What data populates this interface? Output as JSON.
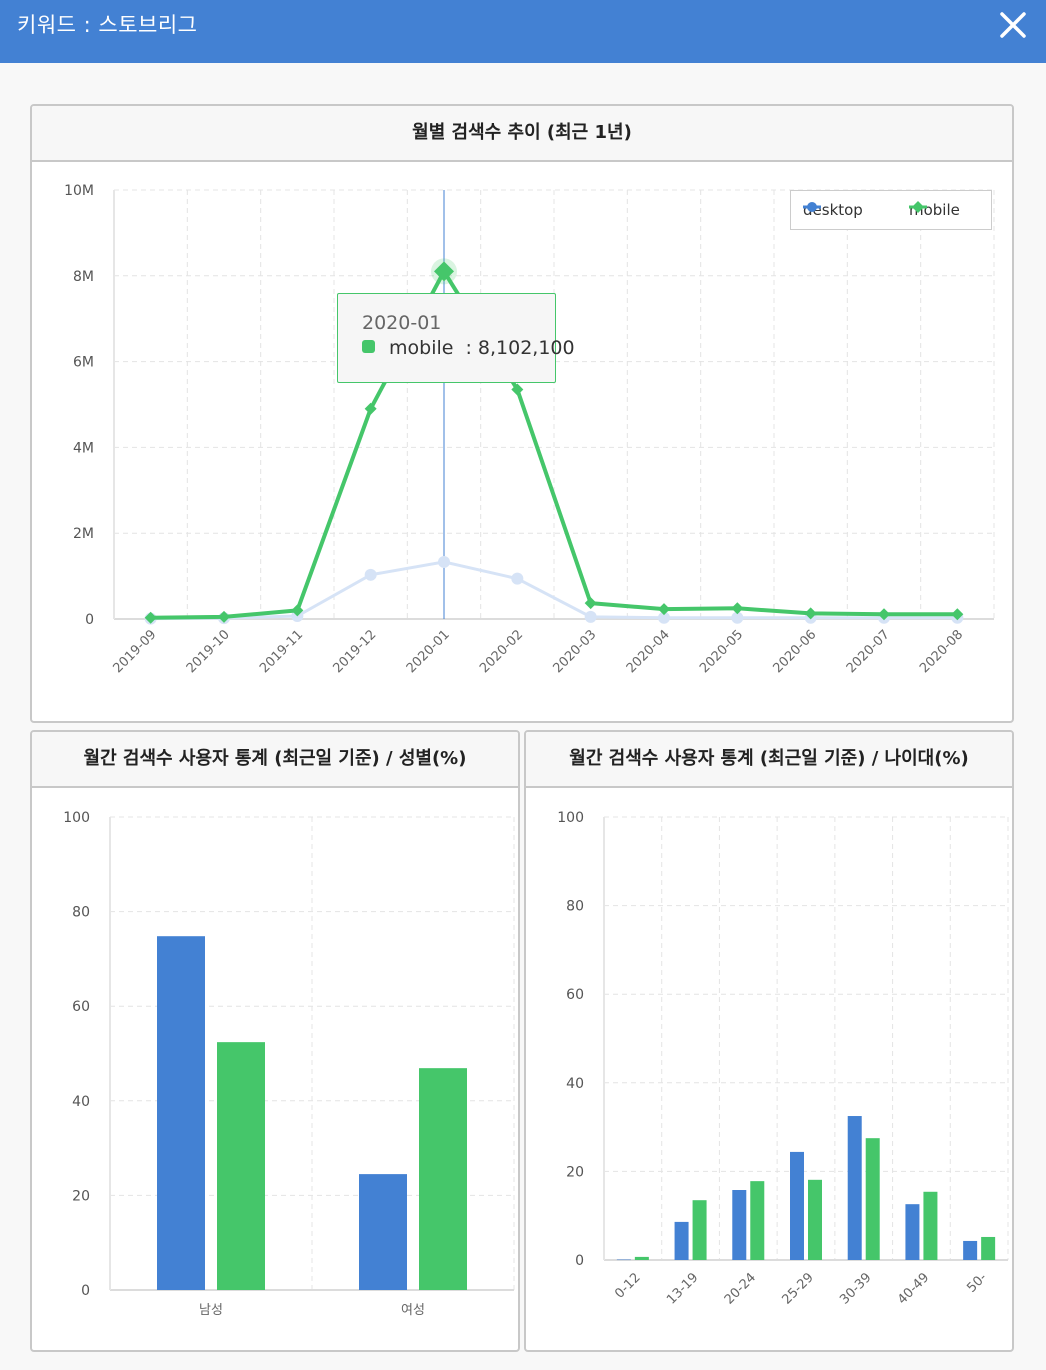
{
  "header": {
    "title": "키워드 : 스토브리그",
    "close_icon": "close-icon"
  },
  "colors": {
    "header_bg": "#4381d3",
    "desktop": "#4381d3",
    "mobile": "#45c66a"
  },
  "monthly_panel": {
    "title": "월별 검색수 추이 (최근 1년)",
    "legend": [
      {
        "label": "desktop",
        "icon": "circle-marker-icon"
      },
      {
        "label": "mobile",
        "icon": "diamond-marker-icon"
      }
    ],
    "tooltip": {
      "title": "2020-01",
      "series": "mobile",
      "separator": ":",
      "value": "8,102,100"
    }
  },
  "gender_panel": {
    "title": "월간 검색수 사용자 통계 (최근일 기준) / 성별(%)"
  },
  "age_panel": {
    "title": "월간 검색수 사용자 통계 (최근일 기준) / 나이대(%)"
  },
  "chart_data": [
    {
      "type": "line",
      "title": "월별 검색수 추이 (최근 1년)",
      "xlabel": "",
      "ylabel": "",
      "x": [
        "2019-09",
        "2019-10",
        "2019-11",
        "2019-12",
        "2020-01",
        "2020-02",
        "2020-03",
        "2020-04",
        "2020-05",
        "2020-06",
        "2020-07",
        "2020-08"
      ],
      "yticks": [
        "0",
        "2M",
        "4M",
        "6M",
        "8M",
        "10M"
      ],
      "ylim": [
        0,
        10000000
      ],
      "grid": true,
      "legend_position": "top-right",
      "highlighted_index": 4,
      "series": [
        {
          "name": "desktop",
          "color": "#4381d3",
          "marker": "circle",
          "faded": true,
          "values": [
            10000,
            20000,
            70000,
            1030000,
            1330000,
            940000,
            50000,
            30000,
            30000,
            30000,
            30000,
            30000
          ]
        },
        {
          "name": "mobile",
          "color": "#45c66a",
          "marker": "diamond",
          "values": [
            30000,
            50000,
            200000,
            4900000,
            8102100,
            5350000,
            370000,
            230000,
            250000,
            130000,
            110000,
            110000
          ]
        }
      ]
    },
    {
      "type": "bar",
      "title": "월간 검색수 사용자 통계 (최근일 기준) / 성별(%)",
      "categories": [
        "남성",
        "여성"
      ],
      "yticks": [
        "0",
        "20",
        "40",
        "60",
        "80",
        "100"
      ],
      "ylim": [
        0,
        100
      ],
      "grid": true,
      "series": [
        {
          "name": "desktop",
          "color": "#4381d3",
          "values": [
            74.8,
            24.5
          ]
        },
        {
          "name": "mobile",
          "color": "#45c66a",
          "values": [
            52.4,
            46.9
          ]
        }
      ]
    },
    {
      "type": "bar",
      "title": "월간 검색수 사용자 통계 (최근일 기준) / 나이대(%)",
      "categories": [
        "0-12",
        "13-19",
        "20-24",
        "25-29",
        "30-39",
        "40-49",
        "50-"
      ],
      "yticks": [
        "0",
        "20",
        "40",
        "60",
        "80",
        "100"
      ],
      "ylim": [
        0,
        100
      ],
      "grid": true,
      "series": [
        {
          "name": "desktop",
          "color": "#4381d3",
          "values": [
            0.1,
            8.6,
            15.8,
            24.4,
            32.5,
            12.6,
            4.3
          ]
        },
        {
          "name": "mobile",
          "color": "#45c66a",
          "values": [
            0.7,
            13.5,
            17.8,
            18.1,
            27.5,
            15.4,
            5.2
          ]
        }
      ]
    }
  ]
}
